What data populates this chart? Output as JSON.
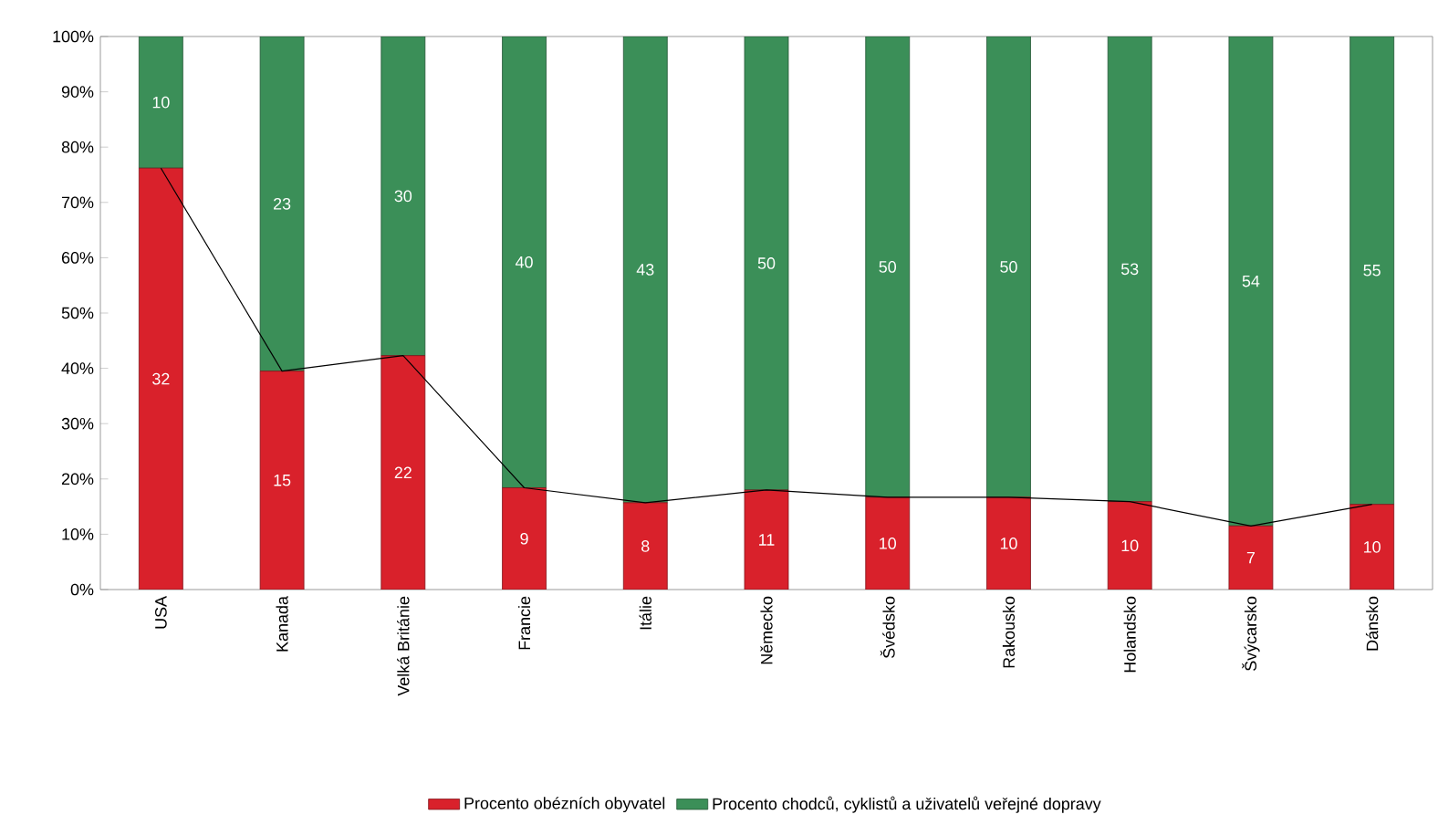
{
  "chart_data": {
    "type": "bar",
    "stacked": true,
    "categories": [
      "USA",
      "Kanada",
      "Velká Británie",
      "Francie",
      "Itálie",
      "Německo",
      "Švédsko",
      "Rakousko",
      "Holandsko",
      "Švýcarsko",
      "Dánsko"
    ],
    "series": [
      {
        "name": "Procento obézních obyvatel",
        "color": "#d9212b",
        "values": [
          76.2,
          39.5,
          42.3,
          18.4,
          15.7,
          18.0,
          16.7,
          16.7,
          15.9,
          11.5,
          15.4
        ]
      },
      {
        "name": "Procento chodců, cyklistů a uživatelů veřejné dopravy",
        "color": "#3b8f58",
        "values": [
          23.8,
          60.5,
          57.7,
          81.6,
          84.3,
          82.0,
          83.3,
          83.3,
          84.1,
          88.5,
          84.6
        ]
      },
      {
        "type": "line",
        "color": "#000000",
        "values": [
          76.2,
          39.5,
          42.3,
          18.4,
          15.7,
          18.0,
          16.7,
          16.7,
          15.9,
          11.5,
          15.4
        ]
      }
    ],
    "annotations": [
      "32",
      "15",
      "22",
      "9",
      "8",
      "11",
      "10",
      "10",
      "10",
      "7",
      "10",
      "10",
      "23",
      "30",
      "40",
      "43",
      "50",
      "50",
      "50",
      "53",
      "54",
      "55"
    ],
    "ylim": [
      0,
      100
    ],
    "yticks": [
      {
        "value": 0,
        "label": "0%"
      },
      {
        "value": 10,
        "label": "10%"
      },
      {
        "value": 20,
        "label": "20%"
      },
      {
        "value": 30,
        "label": "30%"
      },
      {
        "value": 40,
        "label": "40%"
      },
      {
        "value": 50,
        "label": "50%"
      },
      {
        "value": 60,
        "label": "60%"
      },
      {
        "value": 70,
        "label": "70%"
      },
      {
        "value": 80,
        "label": "80%"
      },
      {
        "value": 90,
        "label": "90%"
      },
      {
        "value": 100,
        "label": "100%"
      }
    ],
    "grid": false,
    "legend": "bottom"
  }
}
